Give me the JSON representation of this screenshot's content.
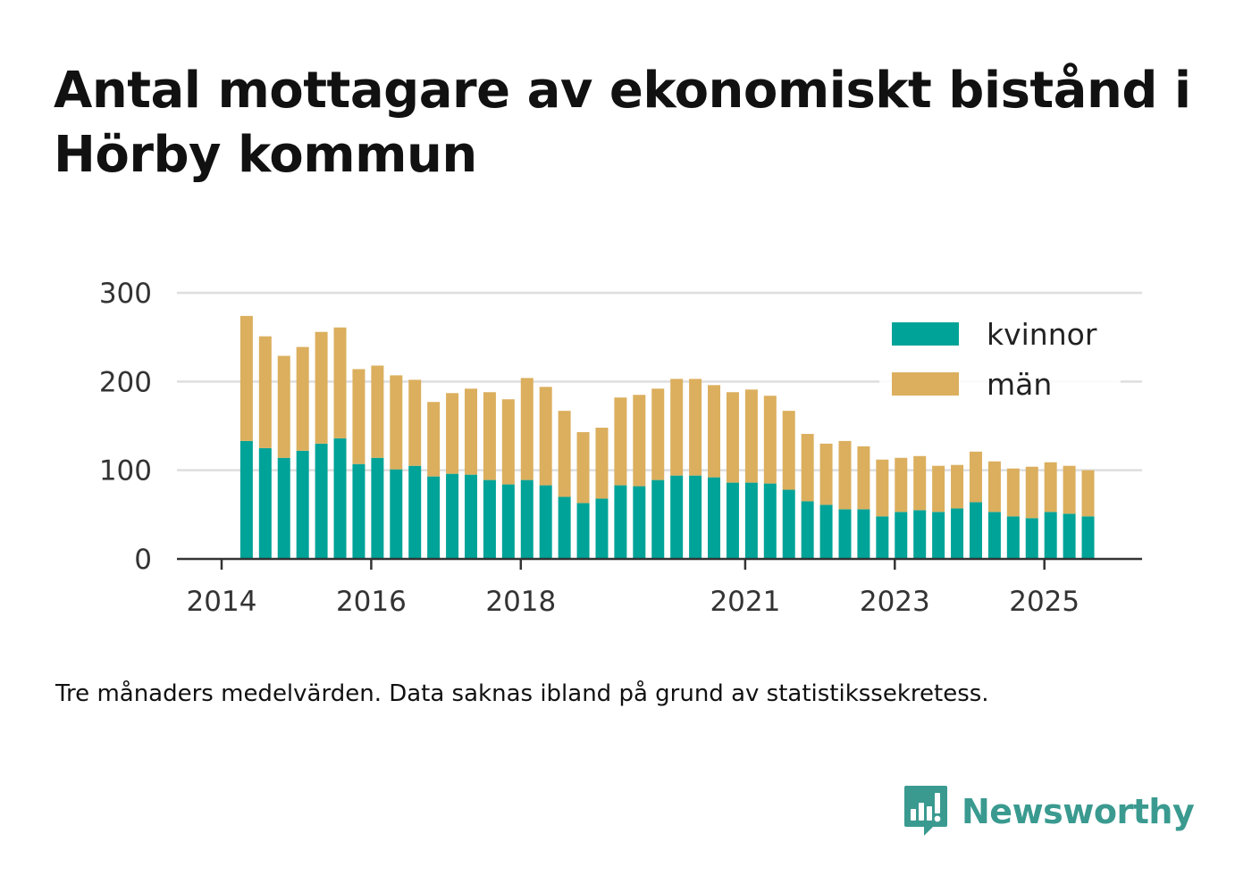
{
  "title": "Antal mottagare av ekonomiskt bistånd i Hörby kommun",
  "caption": "Tre månaders medelvärden. Data saknas ibland på grund av statistikssekretess.",
  "brand": {
    "name": "Newsworthy",
    "icon": "bar-chart-speech-bubble-icon",
    "color": "#3a9a90"
  },
  "chart_data": {
    "type": "bar",
    "stacked": true,
    "title": "",
    "xlabel": "",
    "ylabel": "",
    "ylim": [
      0,
      300
    ],
    "yticks": [
      0,
      100,
      200,
      300
    ],
    "xticks": [
      {
        "label": "2014",
        "x": "2014-01"
      },
      {
        "label": "2016",
        "x": "2016-01"
      },
      {
        "label": "2018",
        "x": "2018-01"
      },
      {
        "label": "2021",
        "x": "2021-01"
      },
      {
        "label": "2023",
        "x": "2023-01"
      },
      {
        "label": "2025",
        "x": "2025-01"
      }
    ],
    "grid": true,
    "legend_position": "top-right",
    "categories": [
      "2014-05",
      "2014-08",
      "2014-11",
      "2015-02",
      "2015-05",
      "2015-08",
      "2015-11",
      "2016-02",
      "2016-05",
      "2016-08",
      "2016-11",
      "2017-02",
      "2017-05",
      "2017-08",
      "2017-11",
      "2018-02",
      "2018-05",
      "2018-08",
      "2018-11",
      "2019-02",
      "2019-05",
      "2019-08",
      "2019-11",
      "2020-02",
      "2020-05",
      "2020-08",
      "2020-11",
      "2021-02",
      "2021-05",
      "2021-08",
      "2021-11",
      "2022-02",
      "2022-05",
      "2022-08",
      "2022-11",
      "2023-02",
      "2023-05",
      "2023-08",
      "2023-11",
      "2024-02",
      "2024-05",
      "2024-08",
      "2024-11",
      "2025-02",
      "2025-05",
      "2025-08"
    ],
    "series": [
      {
        "name": "kvinnor",
        "color": "#00a398",
        "values": [
          133,
          125,
          114,
          122,
          130,
          136,
          107,
          114,
          101,
          105,
          93,
          96,
          95,
          89,
          84,
          89,
          83,
          70,
          63,
          68,
          83,
          82,
          89,
          94,
          94,
          92,
          86,
          86,
          85,
          78,
          65,
          61,
          56,
          56,
          48,
          53,
          55,
          53,
          57,
          64,
          53,
          48,
          46,
          53,
          51,
          48
        ]
      },
      {
        "name": "män",
        "color": "#dbaf5e",
        "values": [
          141,
          126,
          115,
          117,
          126,
          125,
          107,
          104,
          106,
          97,
          84,
          91,
          97,
          99,
          96,
          115,
          111,
          97,
          80,
          80,
          99,
          103,
          103,
          109,
          109,
          104,
          102,
          105,
          99,
          89,
          76,
          69,
          77,
          71,
          64,
          61,
          61,
          52,
          49,
          57,
          57,
          54,
          58,
          56,
          54,
          52
        ]
      }
    ]
  }
}
